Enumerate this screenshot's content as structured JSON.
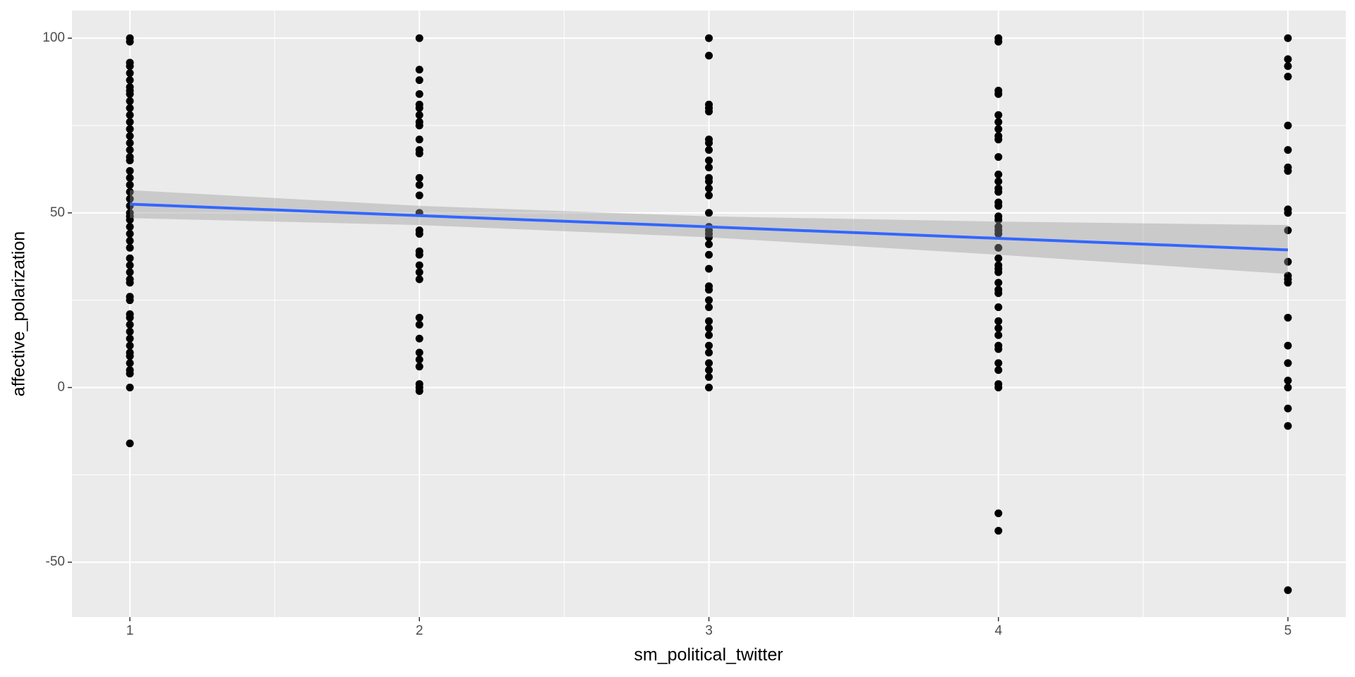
{
  "chart_data": {
    "type": "scatter",
    "x_label": "sm_political_twitter",
    "y_label": "affective_polarization",
    "xlim": [
      0.8,
      5.2
    ],
    "ylim": [
      -65.7,
      107.9
    ],
    "xticks": [
      1,
      2,
      3,
      4,
      5
    ],
    "yticks": [
      -50,
      0,
      50,
      100
    ],
    "minor_xticks": [
      1.5,
      2.5,
      3.5,
      4.5
    ],
    "minor_yticks": [
      -25,
      25,
      75
    ],
    "grid": true,
    "background": "#ebebeb",
    "grid_color": "#ffffff",
    "points": {
      "color": "#000000",
      "groups": [
        {
          "x": 1,
          "y": [
            100,
            99,
            93,
            92,
            90,
            88,
            86,
            85,
            84,
            82,
            80,
            78,
            76,
            74,
            72,
            70,
            68,
            66,
            65,
            62,
            60,
            58,
            56,
            54,
            52,
            50,
            49,
            48,
            46,
            44,
            42,
            40,
            37,
            35,
            33,
            31,
            30,
            26,
            25,
            21,
            20,
            18,
            16,
            14,
            12,
            10,
            9,
            7,
            5,
            4,
            0,
            -16
          ]
        },
        {
          "x": 2,
          "y": [
            100,
            91,
            88,
            84,
            81,
            80,
            78,
            76,
            75,
            71,
            68,
            67,
            60,
            58,
            55,
            50,
            45,
            44,
            39,
            38,
            35,
            33,
            31,
            20,
            18,
            14,
            10,
            8,
            6,
            1,
            0,
            -1
          ]
        },
        {
          "x": 3,
          "y": [
            100,
            95,
            81,
            80,
            79,
            71,
            70,
            68,
            65,
            63,
            60,
            59,
            57,
            55,
            50,
            46,
            45,
            44,
            43,
            41,
            38,
            34,
            29,
            28,
            25,
            23,
            19,
            17,
            15,
            12,
            10,
            7,
            5,
            3,
            0
          ]
        },
        {
          "x": 4,
          "y": [
            100,
            99,
            85,
            84,
            78,
            76,
            74,
            72,
            71,
            66,
            61,
            59,
            57,
            56,
            53,
            52,
            49,
            48,
            46,
            45,
            44,
            40,
            37,
            35,
            34,
            33,
            30,
            28,
            27,
            23,
            19,
            17,
            15,
            12,
            11,
            7,
            5,
            1,
            0,
            -36,
            -41
          ]
        },
        {
          "x": 5,
          "y": [
            100,
            94,
            92,
            89,
            75,
            68,
            63,
            62,
            51,
            50,
            45,
            36,
            32,
            31,
            30,
            20,
            12,
            7,
            2,
            0,
            -6,
            -11,
            -58
          ]
        }
      ]
    },
    "fit": {
      "color": "#3366ff",
      "band_color": "#999999",
      "x": [
        1,
        2,
        3,
        4,
        5
      ],
      "y": [
        52.5,
        49.2,
        46,
        42.7,
        39.4
      ],
      "lower": [
        48.5,
        46.5,
        43,
        38,
        32.5
      ],
      "upper": [
        56.5,
        52,
        49,
        47.5,
        46.5
      ]
    }
  }
}
